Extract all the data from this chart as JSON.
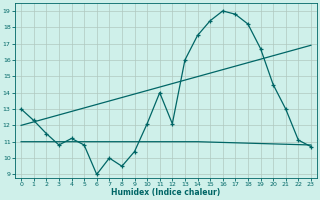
{
  "xlabel": "Humidex (Indice chaleur)",
  "background_color": "#cff0ea",
  "grid_color": "#b0c8c0",
  "line_color": "#006666",
  "xlim": [
    -0.5,
    23.5
  ],
  "ylim": [
    8.8,
    19.5
  ],
  "yticks": [
    9,
    10,
    11,
    12,
    13,
    14,
    15,
    16,
    17,
    18,
    19
  ],
  "xticks": [
    0,
    1,
    2,
    3,
    4,
    5,
    6,
    7,
    8,
    9,
    10,
    11,
    12,
    13,
    14,
    15,
    16,
    17,
    18,
    19,
    20,
    21,
    22,
    23
  ],
  "series1_x": [
    0,
    1,
    2,
    3,
    4,
    5,
    6,
    7,
    8,
    9,
    10,
    11,
    12,
    13,
    14,
    15,
    16,
    17,
    18,
    19,
    20,
    21,
    22,
    23
  ],
  "series1_y": [
    13.0,
    12.3,
    11.5,
    10.8,
    11.2,
    10.8,
    9.0,
    10.0,
    9.5,
    10.4,
    12.1,
    14.0,
    12.1,
    16.0,
    17.5,
    18.4,
    19.0,
    18.8,
    18.2,
    16.7,
    14.5,
    13.0,
    11.1,
    10.7
  ],
  "series2_x": [
    0,
    14,
    23
  ],
  "series2_y": [
    11.0,
    11.0,
    10.8
  ],
  "series3_x": [
    0,
    23
  ],
  "series3_y": [
    12.0,
    16.9
  ]
}
